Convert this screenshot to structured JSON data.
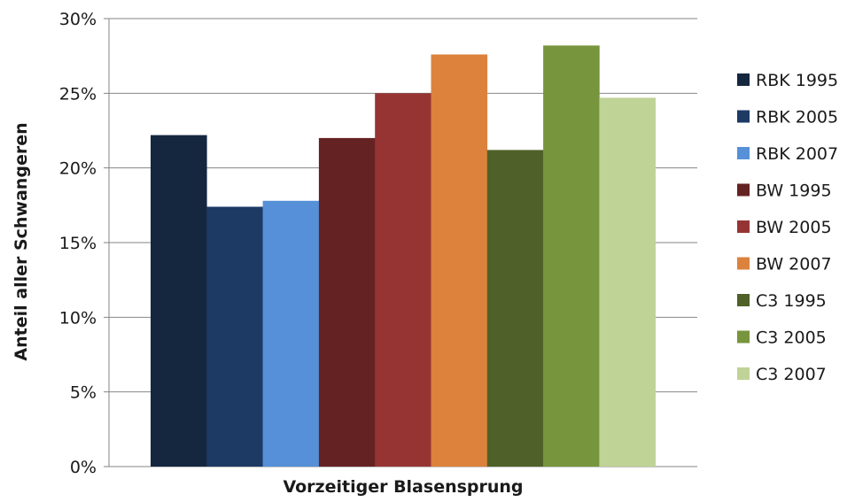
{
  "chart_data": {
    "type": "bar",
    "categories": [
      "Vorzeitiger Blasensprung"
    ],
    "series": [
      {
        "name": "RBK 1995",
        "values": [
          22.2
        ],
        "color": "#14273f"
      },
      {
        "name": "RBK 2005",
        "values": [
          17.4
        ],
        "color": "#1d3a64"
      },
      {
        "name": "RBK 2007",
        "values": [
          17.8
        ],
        "color": "#5590d8"
      },
      {
        "name": "BW 1995",
        "values": [
          22.0
        ],
        "color": "#652223"
      },
      {
        "name": "BW 2005",
        "values": [
          25.0
        ],
        "color": "#963434"
      },
      {
        "name": "BW 2007",
        "values": [
          27.6
        ],
        "color": "#dc823d"
      },
      {
        "name": "C3 1995",
        "values": [
          21.2
        ],
        "color": "#4f6128"
      },
      {
        "name": "C3 2005",
        "values": [
          28.2
        ],
        "color": "#77953c"
      },
      {
        "name": "C3 2007",
        "values": [
          24.7
        ],
        "color": "#bfd397"
      }
    ],
    "title": "",
    "xlabel": "Vorzeitiger Blasensprung",
    "ylabel": "Anteil aller Schwangeren",
    "ylim": [
      0,
      30
    ],
    "yticks": [
      0,
      5,
      10,
      15,
      20,
      25,
      30
    ],
    "ytick_labels": [
      "0%",
      "5%",
      "10%",
      "15%",
      "20%",
      "25%",
      "30%"
    ],
    "grid": true,
    "legend_position": "right",
    "gridline_color": "#868686"
  }
}
